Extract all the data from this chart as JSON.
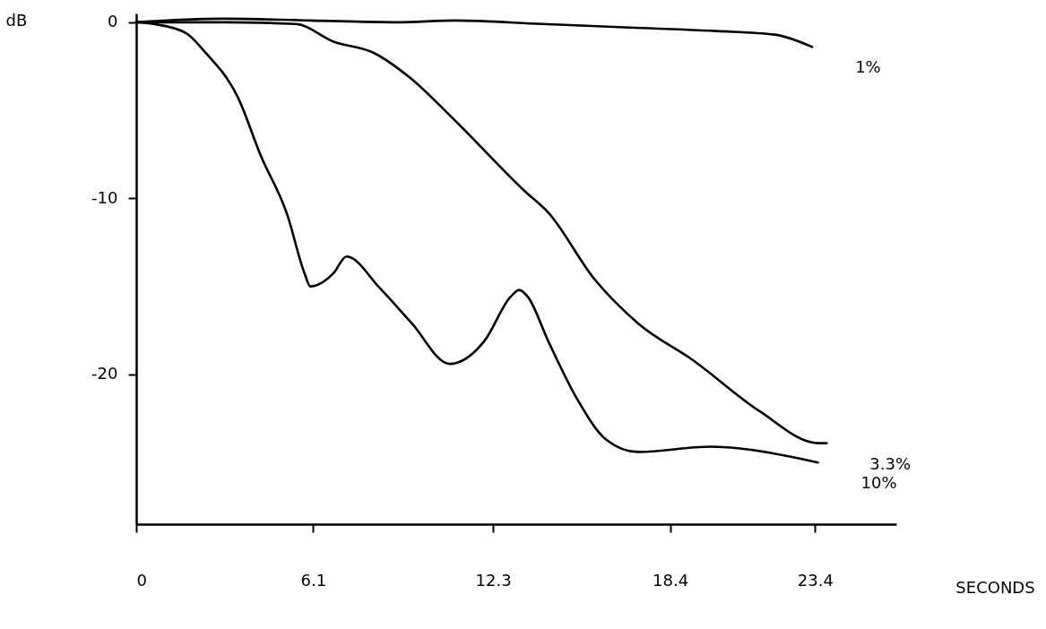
{
  "chart_data": {
    "type": "line",
    "xlabel": "SECONDS",
    "ylabel": "dB",
    "xlim": [
      0,
      26.2
    ],
    "ylim": [
      -28.5,
      0.5
    ],
    "xticks": [
      0,
      6.1,
      12.3,
      18.4,
      23.4
    ],
    "yticks": [
      0,
      -10,
      -20
    ],
    "line_style": "solid",
    "series": [
      {
        "name": "1%",
        "color": "#000000",
        "x": [
          0,
          3,
          6,
          9,
          11,
          14,
          17,
          20,
          22,
          23.3
        ],
        "values": [
          0,
          0.2,
          0.1,
          0,
          0.1,
          -0.1,
          -0.3,
          -0.5,
          -0.7,
          -1.4
        ]
      },
      {
        "name": "3.3%",
        "color": "#000000",
        "x": [
          0,
          3,
          5.5,
          6.8,
          8.2,
          9.4,
          11,
          13.4,
          14.2,
          15.8,
          17.3,
          19.2,
          21.5,
          23.5,
          23.8
        ],
        "values": [
          0,
          0,
          -0.1,
          -1.1,
          -1.75,
          -3.1,
          -5.6,
          -9.6,
          -10.8,
          -14.6,
          -17.1,
          -19.2,
          -22.1,
          -23.9,
          -23.9
        ]
      },
      {
        "name": "10%",
        "color": "#000000",
        "x": [
          0,
          0.6,
          1.7,
          2.4,
          3.5,
          4.3,
          5.2,
          5.8,
          6.0,
          6.8,
          7.25,
          8.4,
          9.5,
          10.8,
          12.0,
          12.9,
          13.2,
          13.5,
          14.2,
          15.2,
          16.2,
          17.3,
          19.8,
          20.8,
          23.5
        ],
        "values": [
          0,
          -0.1,
          -0.6,
          -1.75,
          -4.25,
          -7.6,
          -10.9,
          -14.25,
          -15,
          -14.25,
          -13.3,
          -15.1,
          -17.1,
          -19.4,
          -18.1,
          -15.6,
          -15.2,
          -15.6,
          -18.1,
          -21.4,
          -23.7,
          -24.4,
          -24.1,
          -24.2,
          -25
        ]
      }
    ]
  }
}
